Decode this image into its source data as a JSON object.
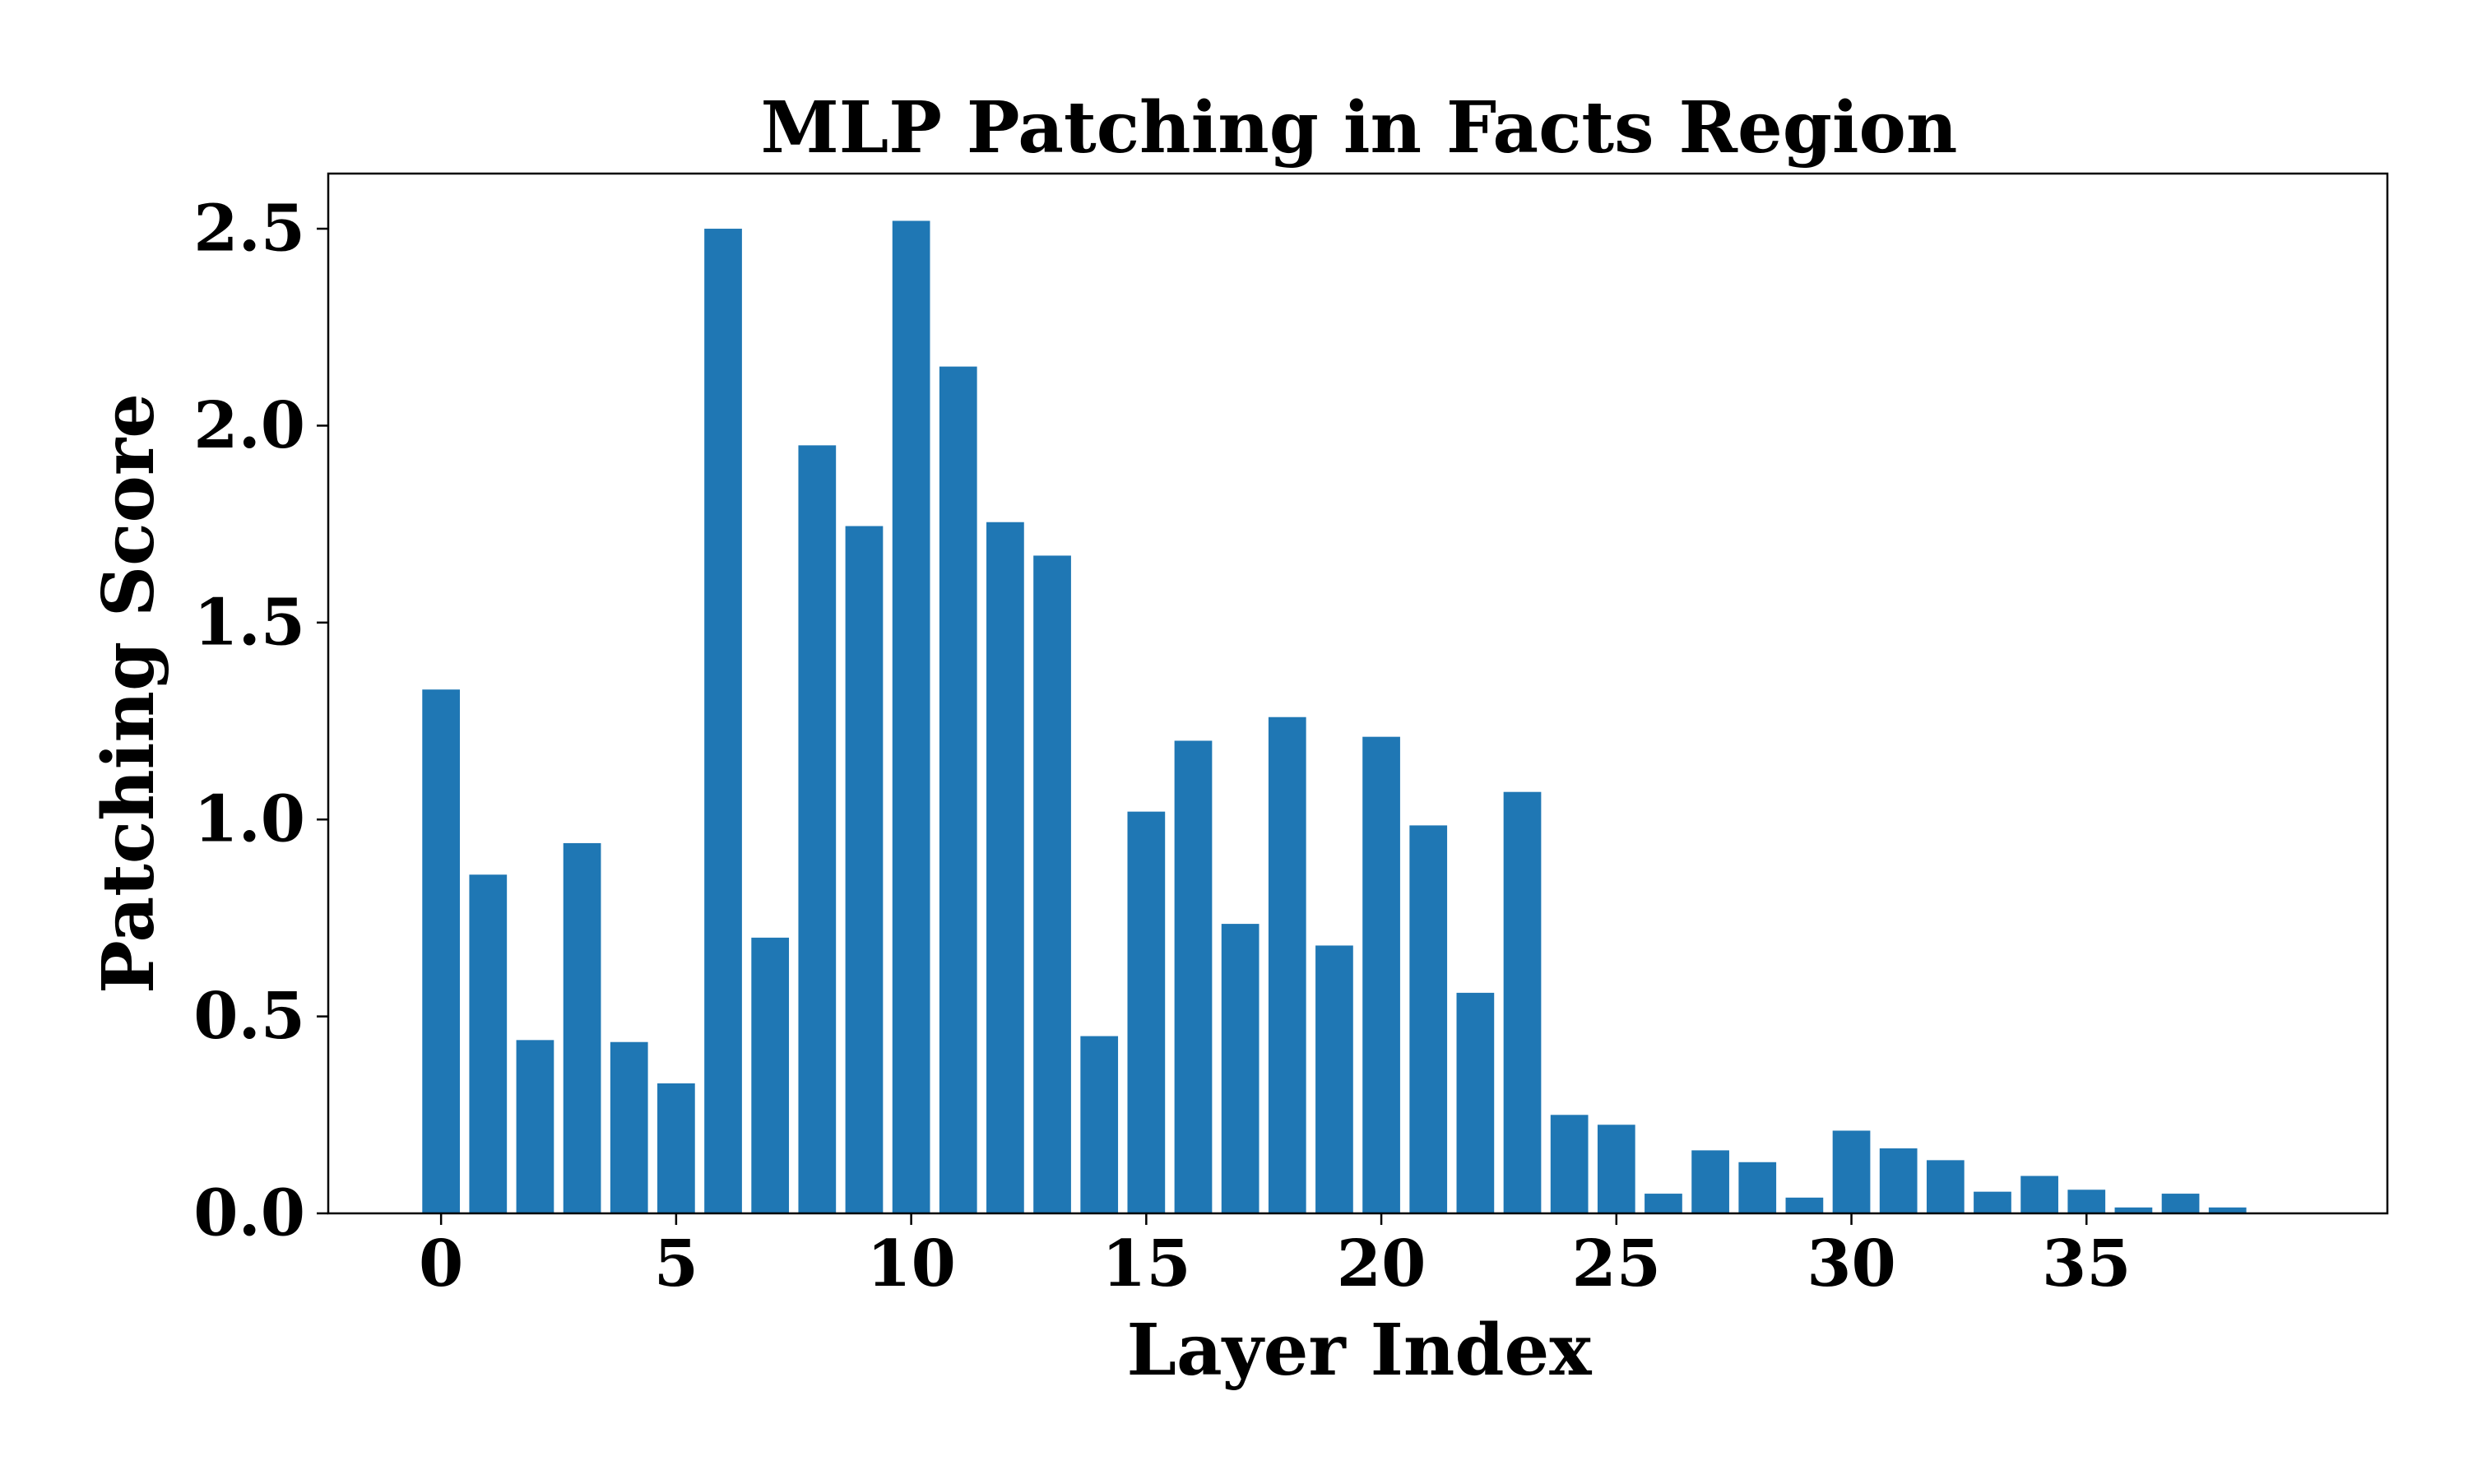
{
  "chart_data": {
    "type": "bar",
    "title": "MLP Patching in Facts Region",
    "xlabel": "Layer Index",
    "ylabel": "Patching Score",
    "x": [
      0,
      1,
      2,
      3,
      4,
      5,
      6,
      7,
      8,
      9,
      10,
      11,
      12,
      13,
      14,
      15,
      16,
      17,
      18,
      19,
      20,
      21,
      22,
      23,
      24,
      25,
      26,
      27,
      28,
      29,
      30,
      31,
      32,
      33,
      34,
      35,
      36,
      37,
      38
    ],
    "values": [
      1.33,
      0.86,
      0.44,
      0.94,
      0.435,
      0.33,
      2.5,
      0.7,
      1.95,
      1.745,
      2.52,
      2.15,
      1.755,
      1.67,
      0.45,
      1.02,
      1.2,
      0.735,
      1.26,
      0.68,
      1.21,
      0.985,
      0.56,
      1.07,
      0.25,
      0.225,
      0.05,
      0.16,
      0.13,
      0.04,
      0.21,
      0.165,
      0.135,
      0.055,
      0.095,
      0.06,
      0.015,
      0.05,
      0.015
    ],
    "xticks": [
      "0",
      "5",
      "10",
      "15",
      "20",
      "25",
      "30",
      "35"
    ],
    "xtick_values": [
      0,
      5,
      10,
      15,
      20,
      25,
      30,
      35
    ],
    "yticks": [
      "0.0",
      "0.5",
      "1.0",
      "1.5",
      "2.0",
      "2.5"
    ],
    "ytick_values": [
      0,
      0.5,
      1.0,
      1.5,
      2.0,
      2.5
    ],
    "xlim": [
      -2.4,
      41.4
    ],
    "ylim": [
      0,
      2.64
    ],
    "bar_color": "#1f77b4",
    "grid": false
  }
}
